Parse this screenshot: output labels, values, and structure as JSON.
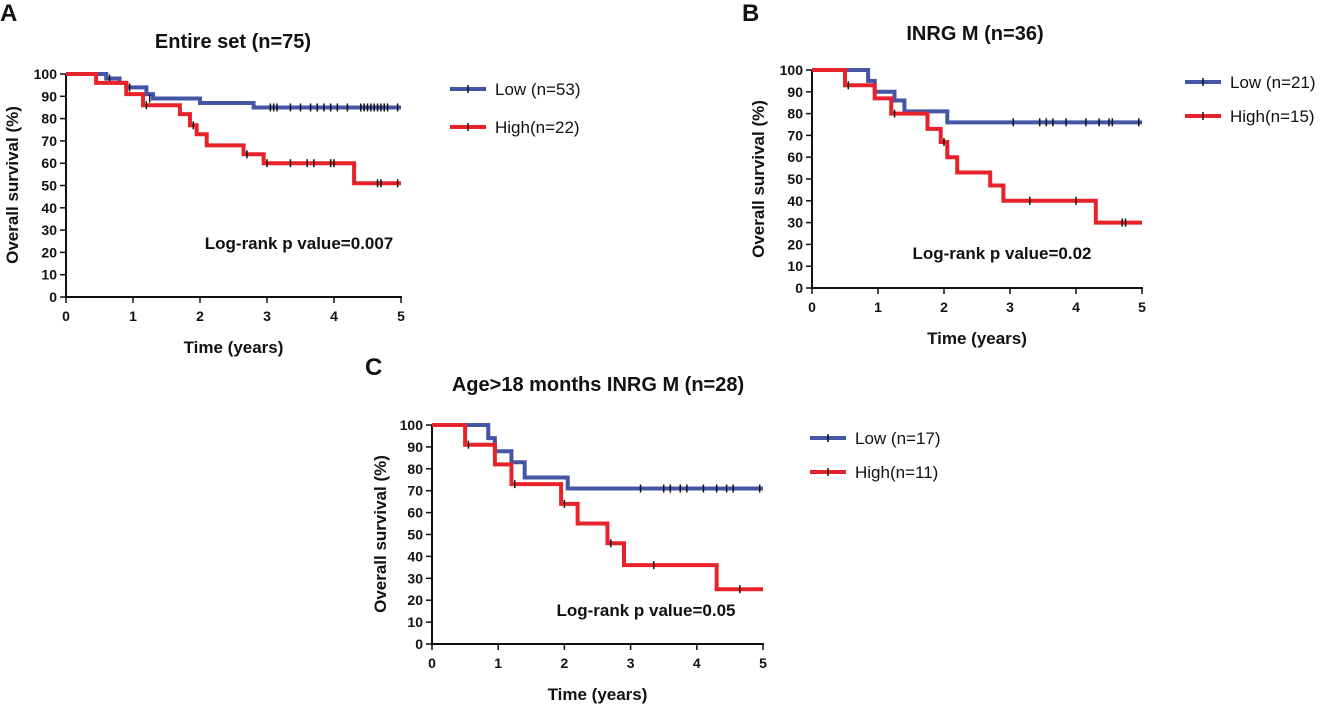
{
  "chart_data": [
    {
      "type": "line",
      "subtype": "kaplan-meier",
      "panel": "A",
      "title": "Entire set (n=75)",
      "xlabel": "Time (years)",
      "ylabel": "Overall survival (%)",
      "xlim": [
        0,
        5
      ],
      "ylim": [
        0,
        100
      ],
      "xticks": [
        0,
        1,
        2,
        3,
        4,
        5
      ],
      "yticks": [
        0,
        10,
        20,
        30,
        40,
        50,
        60,
        70,
        80,
        90,
        100
      ],
      "annotation": "Log-rank p value=0.007",
      "legend_position": "right",
      "series": [
        {
          "name": "Low (n=53)",
          "color": "#4455a6",
          "steps": [
            [
              0,
              100
            ],
            [
              0.6,
              98
            ],
            [
              0.8,
              96
            ],
            [
              0.9,
              94
            ],
            [
              1.2,
              91
            ],
            [
              1.3,
              89
            ],
            [
              2.0,
              87
            ],
            [
              2.8,
              85
            ],
            [
              5,
              85
            ]
          ],
          "censored": [
            [
              0.65,
              98
            ],
            [
              0.95,
              94
            ],
            [
              1.25,
              89
            ],
            [
              3.05,
              85
            ],
            [
              3.1,
              85
            ],
            [
              3.15,
              85
            ],
            [
              3.35,
              85
            ],
            [
              3.5,
              85
            ],
            [
              3.65,
              85
            ],
            [
              3.75,
              85
            ],
            [
              3.85,
              85
            ],
            [
              3.95,
              85
            ],
            [
              4.05,
              85
            ],
            [
              4.2,
              85
            ],
            [
              4.4,
              85
            ],
            [
              4.45,
              85
            ],
            [
              4.5,
              85
            ],
            [
              4.55,
              85
            ],
            [
              4.6,
              85
            ],
            [
              4.65,
              85
            ],
            [
              4.7,
              85
            ],
            [
              4.75,
              85
            ],
            [
              4.8,
              85
            ],
            [
              4.95,
              85
            ]
          ]
        },
        {
          "name": "High(n=22)",
          "color": "#e8222a",
          "steps": [
            [
              0,
              100
            ],
            [
              0.45,
              96
            ],
            [
              0.9,
              91
            ],
            [
              1.15,
              86
            ],
            [
              1.7,
              82
            ],
            [
              1.85,
              77
            ],
            [
              1.95,
              73
            ],
            [
              2.1,
              68
            ],
            [
              2.65,
              64
            ],
            [
              2.95,
              60
            ],
            [
              4.3,
              51
            ],
            [
              5,
              51
            ]
          ],
          "censored": [
            [
              1.2,
              86
            ],
            [
              1.9,
              77
            ],
            [
              2.7,
              64
            ],
            [
              3.0,
              60
            ],
            [
              3.35,
              60
            ],
            [
              3.6,
              60
            ],
            [
              3.7,
              60
            ],
            [
              3.95,
              60
            ],
            [
              4.0,
              60
            ],
            [
              4.65,
              51
            ],
            [
              4.7,
              51
            ],
            [
              4.95,
              51
            ]
          ]
        }
      ]
    },
    {
      "type": "line",
      "subtype": "kaplan-meier",
      "panel": "B",
      "title": "INRG M (n=36)",
      "xlabel": "Time (years)",
      "ylabel": "Overall survival (%)",
      "xlim": [
        0,
        5
      ],
      "ylim": [
        0,
        100
      ],
      "xticks": [
        0,
        1,
        2,
        3,
        4,
        5
      ],
      "yticks": [
        0,
        10,
        20,
        30,
        40,
        50,
        60,
        70,
        80,
        90,
        100
      ],
      "annotation": "Log-rank p value=0.02",
      "legend_position": "right",
      "series": [
        {
          "name": "Low (n=21)",
          "color": "#4455a6",
          "steps": [
            [
              0,
              100
            ],
            [
              0.85,
              95
            ],
            [
              0.95,
              90
            ],
            [
              1.25,
              86
            ],
            [
              1.4,
              81
            ],
            [
              2.05,
              76
            ],
            [
              5,
              76
            ]
          ],
          "censored": [
            [
              3.05,
              76
            ],
            [
              3.45,
              76
            ],
            [
              3.55,
              76
            ],
            [
              3.65,
              76
            ],
            [
              3.85,
              76
            ],
            [
              4.15,
              76
            ],
            [
              4.35,
              76
            ],
            [
              4.5,
              76
            ],
            [
              4.55,
              76
            ],
            [
              4.95,
              76
            ]
          ]
        },
        {
          "name": "High(n=15)",
          "color": "#e8222a",
          "steps": [
            [
              0,
              100
            ],
            [
              0.5,
              93
            ],
            [
              0.95,
              87
            ],
            [
              1.2,
              80
            ],
            [
              1.75,
              73
            ],
            [
              1.95,
              67
            ],
            [
              2.05,
              60
            ],
            [
              2.2,
              53
            ],
            [
              2.7,
              47
            ],
            [
              2.9,
              40
            ],
            [
              4.3,
              30
            ],
            [
              5,
              30
            ]
          ],
          "censored": [
            [
              0.55,
              93
            ],
            [
              1.25,
              80
            ],
            [
              2.0,
              67
            ],
            [
              3.3,
              40
            ],
            [
              4.0,
              40
            ],
            [
              4.7,
              30
            ],
            [
              4.75,
              30
            ]
          ]
        }
      ]
    },
    {
      "type": "line",
      "subtype": "kaplan-meier",
      "panel": "C",
      "title": "Age>18 months INRG M (n=28)",
      "xlabel": "Time (years)",
      "ylabel": "Overall survival (%)",
      "xlim": [
        0,
        5
      ],
      "ylim": [
        0,
        100
      ],
      "xticks": [
        0,
        1,
        2,
        3,
        4,
        5
      ],
      "yticks": [
        0,
        10,
        20,
        30,
        40,
        50,
        60,
        70,
        80,
        90,
        100
      ],
      "annotation": "Log-rank p value=0.05",
      "legend_position": "right",
      "series": [
        {
          "name": "Low (n=17)",
          "color": "#4455a6",
          "steps": [
            [
              0,
              100
            ],
            [
              0.85,
              94
            ],
            [
              0.95,
              88
            ],
            [
              1.2,
              83
            ],
            [
              1.4,
              76
            ],
            [
              2.05,
              71
            ],
            [
              5,
              71
            ]
          ],
          "censored": [
            [
              3.15,
              71
            ],
            [
              3.5,
              71
            ],
            [
              3.6,
              71
            ],
            [
              3.75,
              71
            ],
            [
              3.85,
              71
            ],
            [
              4.1,
              71
            ],
            [
              4.3,
              71
            ],
            [
              4.45,
              71
            ],
            [
              4.55,
              71
            ],
            [
              4.95,
              71
            ]
          ]
        },
        {
          "name": "High(n=11)",
          "color": "#e8222a",
          "steps": [
            [
              0,
              100
            ],
            [
              0.5,
              91
            ],
            [
              0.95,
              82
            ],
            [
              1.2,
              73
            ],
            [
              1.95,
              64
            ],
            [
              2.2,
              55
            ],
            [
              2.65,
              46
            ],
            [
              2.9,
              36
            ],
            [
              4.3,
              25
            ],
            [
              5,
              25
            ]
          ],
          "censored": [
            [
              0.55,
              91
            ],
            [
              1.25,
              73
            ],
            [
              2.0,
              64
            ],
            [
              2.7,
              46
            ],
            [
              3.35,
              36
            ],
            [
              4.65,
              25
            ]
          ]
        }
      ]
    }
  ]
}
